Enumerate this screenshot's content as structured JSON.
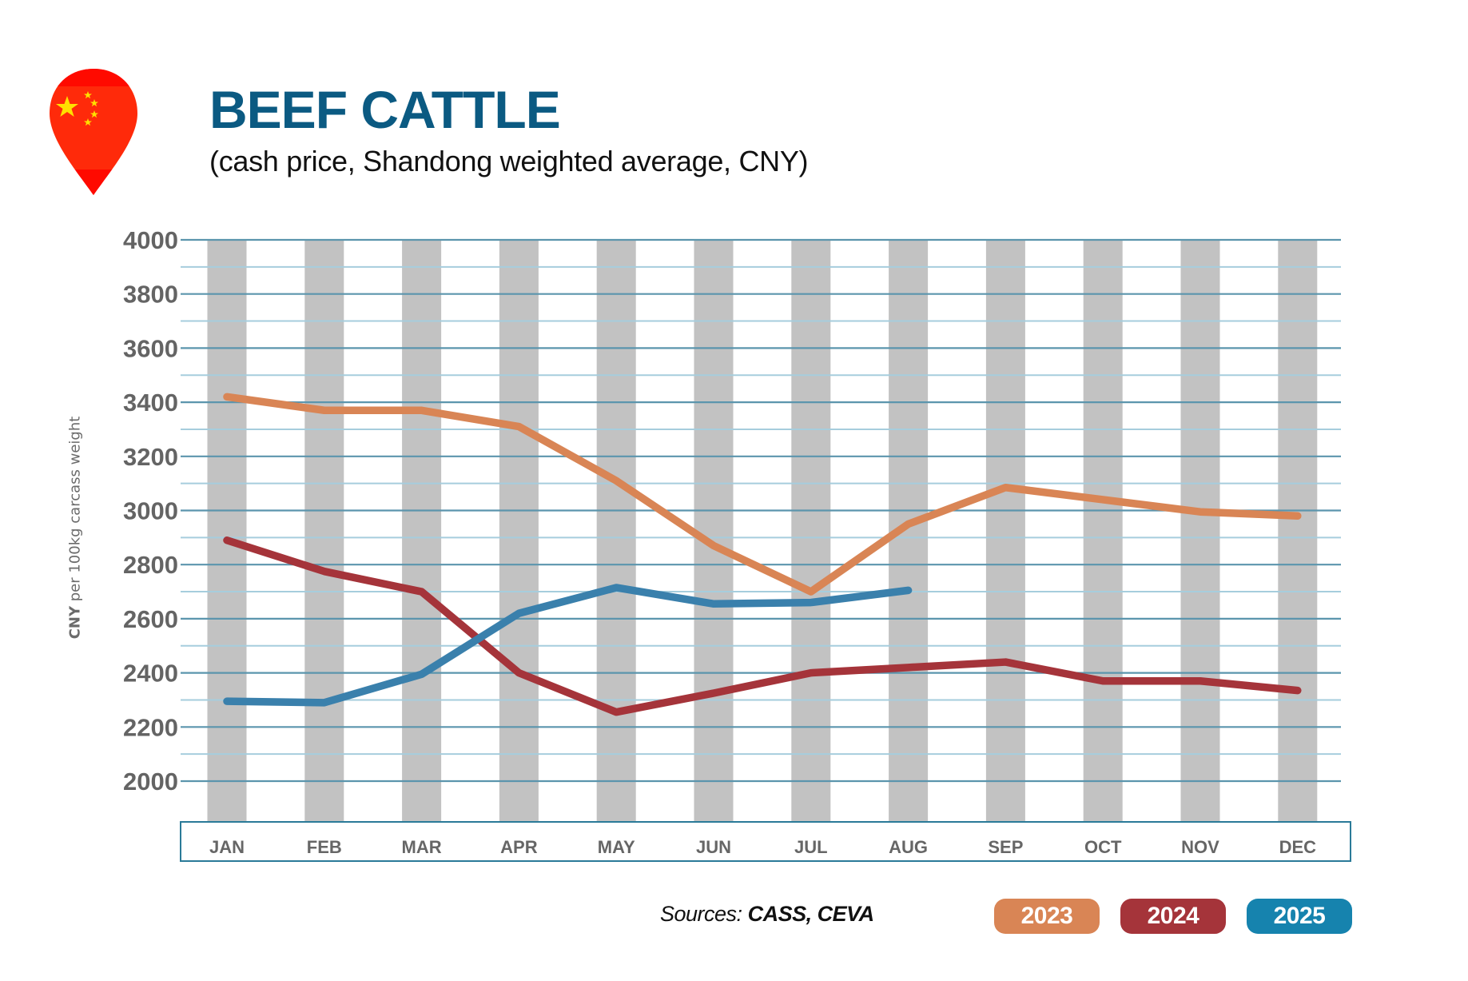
{
  "header": {
    "title": "BEEF CATTLE",
    "subtitle": "(cash price, Shandong weighted average, CNY)",
    "flag_icon": "china-flag-map-pin"
  },
  "footer": {
    "sources_prefix": "Sources:",
    "sources_names": "CASS, CEVA"
  },
  "chart_data": {
    "type": "line",
    "title": "BEEF CATTLE",
    "subtitle": "(cash price, Shandong weighted average, CNY)",
    "xlabel": "",
    "ylabel_bold": "CNY",
    "ylabel_rest": " per 100kg carcass weight",
    "ylabel": "CNY per 100kg carcass weight",
    "categories": [
      "JAN",
      "FEB",
      "MAR",
      "APR",
      "MAY",
      "JUN",
      "JUL",
      "AUG",
      "SEP",
      "OCT",
      "NOV",
      "DEC"
    ],
    "ylim": [
      2000,
      4000
    ],
    "yticks": [
      2000,
      2200,
      2400,
      2600,
      2800,
      3000,
      3200,
      3400,
      3600,
      3800,
      4000
    ],
    "minor_step": 100,
    "grid": true,
    "legend_position": "bottom-right",
    "series": [
      {
        "name": "2023",
        "color": "#D98555",
        "values": [
          3420,
          3370,
          3370,
          3310,
          3110,
          2870,
          2700,
          2950,
          3085,
          3040,
          2995,
          2980
        ]
      },
      {
        "name": "2024",
        "color": "#A5343A",
        "values": [
          2890,
          2775,
          2700,
          2400,
          2255,
          2325,
          2400,
          2420,
          2440,
          2370,
          2370,
          2335
        ]
      },
      {
        "name": "2025",
        "color": "#1683AE",
        "line_color": "#3A80AC",
        "values": [
          2295,
          2290,
          2395,
          2620,
          2715,
          2655,
          2660,
          2705,
          null,
          null,
          null,
          null
        ]
      }
    ]
  }
}
